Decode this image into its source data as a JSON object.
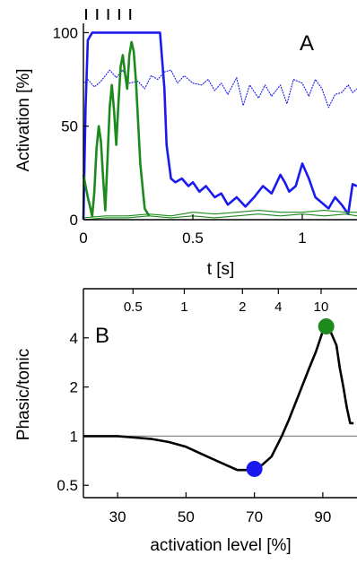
{
  "chart_data": [
    {
      "panel": "A",
      "type": "line",
      "xlabel": "t [s]",
      "ylabel": "Activation [%]",
      "xlim": [
        0,
        1.25
      ],
      "ylim": [
        0,
        105
      ],
      "xticks": [
        0,
        0.5,
        1
      ],
      "xtick_labels": [
        "0",
        "0.5",
        "1"
      ],
      "yticks": [
        0,
        50,
        100
      ],
      "ytick_labels": [
        "0",
        "50",
        "100"
      ],
      "stimulus_markers_t": [
        0.02,
        0.07,
        0.12,
        0.17,
        0.22
      ],
      "series": [
        {
          "color": "#1a1aee",
          "style": "thick",
          "x": [
            0,
            0.01,
            0.02,
            0.04,
            0.35,
            0.37,
            0.38,
            0.4,
            0.42,
            0.45,
            0.48,
            0.5,
            0.53,
            0.56,
            0.6,
            0.63,
            0.66,
            0.7,
            0.74,
            0.78,
            0.82,
            0.86,
            0.9,
            0.92,
            0.94,
            0.97,
            1.0,
            1.03,
            1.06,
            1.09,
            1.12,
            1.15,
            1.18,
            1.21,
            1.23,
            1.25
          ],
          "y": [
            0,
            60,
            96,
            100,
            100,
            70,
            40,
            22,
            20,
            22,
            18,
            20,
            15,
            18,
            12,
            14,
            8,
            12,
            7,
            12,
            18,
            14,
            24,
            20,
            15,
            18,
            30,
            22,
            12,
            9,
            6,
            12,
            8,
            3,
            19,
            18
          ]
        },
        {
          "color": "#1a1aee",
          "style": "thin",
          "x": [
            0,
            0.02,
            0.05,
            0.08,
            0.12,
            0.15,
            0.18,
            0.21,
            0.25,
            0.28,
            0.31,
            0.34,
            0.37,
            0.4,
            0.43,
            0.46,
            0.5,
            0.54,
            0.57,
            0.6,
            0.63,
            0.66,
            0.7,
            0.73,
            0.76,
            0.8,
            0.83,
            0.86,
            0.9,
            0.93,
            0.96,
            1.0,
            1.03,
            1.06,
            1.09,
            1.12,
            1.15,
            1.18,
            1.21,
            1.23,
            1.25
          ],
          "y": [
            73,
            75,
            71,
            74,
            80,
            76,
            80,
            73,
            74,
            70,
            77,
            75,
            79,
            80,
            73,
            77,
            73,
            72,
            75,
            69,
            73,
            67,
            76,
            61,
            72,
            65,
            72,
            66,
            72,
            62,
            75,
            73,
            66,
            75,
            70,
            60,
            67,
            68,
            72,
            68,
            70
          ]
        },
        {
          "color": "#1d8a1d",
          "style": "thick",
          "x": [
            0,
            0.02,
            0.04,
            0.05,
            0.06,
            0.07,
            0.08,
            0.09,
            0.1,
            0.11,
            0.12,
            0.13,
            0.14,
            0.15,
            0.16,
            0.17,
            0.18,
            0.19,
            0.2,
            0.21,
            0.22,
            0.23,
            0.24,
            0.26,
            0.28,
            0.3
          ],
          "y": [
            24,
            12,
            2,
            15,
            38,
            50,
            42,
            22,
            5,
            32,
            60,
            72,
            58,
            40,
            62,
            82,
            88,
            78,
            70,
            88,
            95,
            90,
            74,
            30,
            6,
            2
          ]
        },
        {
          "color": "#1d8a1d",
          "style": "thin",
          "x": [
            0,
            0.1,
            0.2,
            0.3,
            0.4,
            0.5,
            0.6,
            0.7,
            0.8,
            0.9,
            1.0,
            1.1,
            1.2,
            1.25
          ],
          "y": [
            0,
            1,
            1,
            2,
            1,
            2,
            1,
            2,
            3,
            2,
            3,
            2,
            3,
            2
          ]
        },
        {
          "color": "#1d8a1d",
          "style": "thin",
          "x": [
            0,
            0.1,
            0.2,
            0.3,
            0.4,
            0.5,
            0.6,
            0.7,
            0.8,
            0.9,
            1.0,
            1.1,
            1.2,
            1.25
          ],
          "y": [
            1,
            2,
            2,
            3,
            2,
            4,
            3,
            4,
            5,
            4,
            4,
            5,
            4,
            4
          ]
        }
      ]
    },
    {
      "panel": "B",
      "type": "line",
      "xlabel": "activation level [%]",
      "ylabel": "Phasic/tonic",
      "yscale": "log",
      "xlim": [
        20,
        100
      ],
      "ylim": [
        0.42,
        8
      ],
      "xticks": [
        30,
        50,
        70,
        90
      ],
      "xtick_labels": [
        "30",
        "50",
        "70",
        "90"
      ],
      "yticks": [
        0.5,
        1,
        2,
        4
      ],
      "ytick_labels": [
        "0.5",
        "1",
        "2",
        "4"
      ],
      "top_axis_ticks_at_x": [
        34.5,
        49.5,
        66.5,
        77.0,
        89.5
      ],
      "top_axis_labels": [
        "0.5",
        "1",
        "2",
        "4",
        "10"
      ],
      "reference_line_y": 1,
      "curve": {
        "color": "#000000",
        "x": [
          20,
          25,
          30,
          35,
          40,
          45,
          50,
          55,
          60,
          65,
          68,
          70,
          72,
          75,
          78,
          80,
          83,
          86,
          88,
          90,
          91,
          92,
          94,
          95,
          96,
          97,
          98,
          99
        ],
        "y": [
          1.0,
          1.0,
          1.0,
          0.98,
          0.96,
          0.92,
          0.86,
          0.77,
          0.69,
          0.62,
          0.62,
          0.63,
          0.66,
          0.75,
          1.0,
          1.25,
          1.8,
          2.6,
          3.3,
          4.4,
          4.7,
          4.5,
          3.6,
          2.6,
          2.0,
          1.5,
          1.2,
          1.2
        ]
      },
      "highlight_points": [
        {
          "x": 70,
          "y": 0.63,
          "color": "#1a1aee"
        },
        {
          "x": 91,
          "y": 4.7,
          "color": "#1d8a1d"
        }
      ]
    }
  ]
}
